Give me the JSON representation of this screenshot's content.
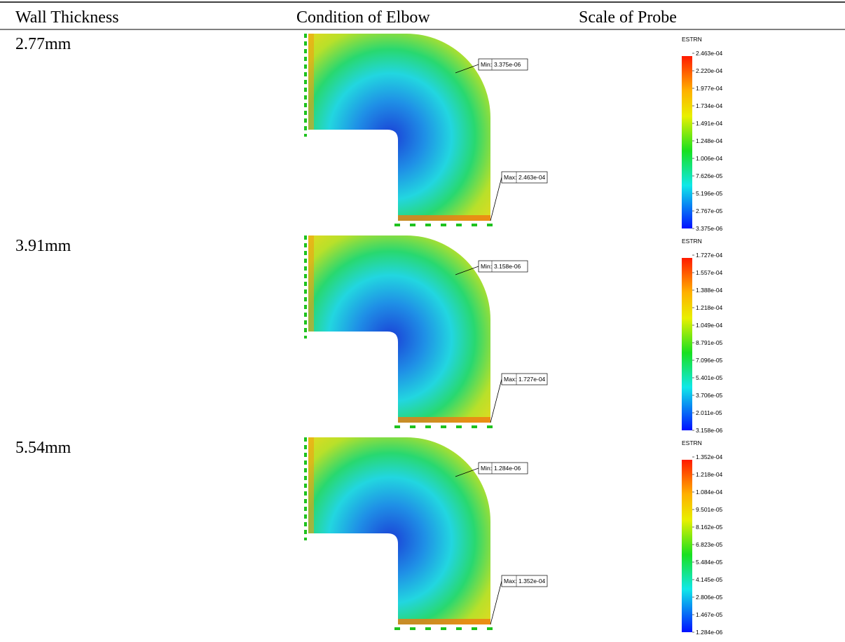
{
  "table": {
    "header": [
      "Wall Thickness",
      "Condition of Elbow",
      "Scale of Probe"
    ],
    "rows": [
      {
        "thickness": "2.77mm",
        "min": {
          "label": "Min:",
          "value": "3.375e-06"
        },
        "max": {
          "label": "Max:",
          "value": "2.463e-04"
        },
        "scale_title": "ESTRN",
        "scale": [
          "2.463e-04",
          "2.220e-04",
          "1.977e-04",
          "1.734e-04",
          "1.491e-04",
          "1.248e-04",
          "1.006e-04",
          "7.626e-05",
          "5.196e-05",
          "2.767e-05",
          "3.375e-06"
        ]
      },
      {
        "thickness": "3.91mm",
        "min": {
          "label": "Min:",
          "value": "3.158e-06"
        },
        "max": {
          "label": "Max:",
          "value": "1.727e-04"
        },
        "scale_title": "ESTRN",
        "scale": [
          "1.727e-04",
          "1.557e-04",
          "1.388e-04",
          "1.218e-04",
          "1.049e-04",
          "8.791e-05",
          "7.096e-05",
          "5.401e-05",
          "3.706e-05",
          "2.011e-05",
          "3.158e-06"
        ]
      },
      {
        "thickness": "5.54mm",
        "min": {
          "label": "Min:",
          "value": "1.284e-06"
        },
        "max": {
          "label": "Max:",
          "value": "1.352e-04"
        },
        "scale_title": "ESTRN",
        "scale": [
          "1.352e-04",
          "1.218e-04",
          "1.084e-04",
          "9.501e-05",
          "8.162e-05",
          "6.823e-05",
          "5.484e-05",
          "4.145e-05",
          "2.806e-05",
          "1.467e-05",
          "1.284e-06"
        ]
      }
    ]
  }
}
